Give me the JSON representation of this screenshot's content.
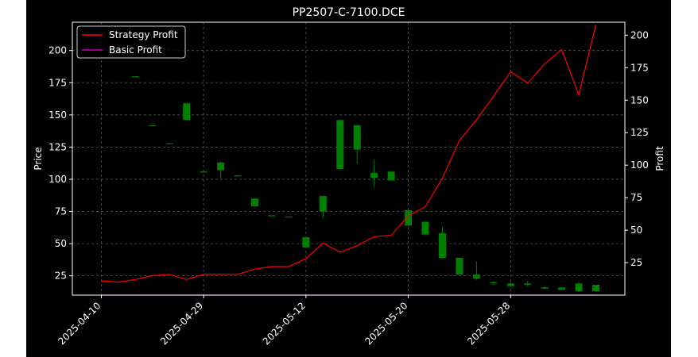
{
  "chart_data": {
    "type": "candlestick",
    "title": "PP2507-C-7100.DCE",
    "ylabel_left": "Price",
    "ylabel_right": "Profit",
    "ylim_left": [
      10,
      222
    ],
    "ylim_right": [
      0,
      210
    ],
    "yticks_left": [
      25,
      50,
      75,
      100,
      125,
      150,
      175,
      200
    ],
    "yticks_right": [
      25,
      50,
      75,
      100,
      125,
      150,
      175,
      200
    ],
    "x_tick_labels": [
      {
        "index": 0,
        "label": "2025-04-10"
      },
      {
        "index": 6,
        "label": "2025-04-29"
      },
      {
        "index": 12,
        "label": "2025-05-12"
      },
      {
        "index": 18,
        "label": "2025-05-20"
      },
      {
        "index": 24,
        "label": "2025-05-28"
      }
    ],
    "x_range": [
      -1.7,
      30.7
    ],
    "grid": true,
    "legend_position": "top-left",
    "colors": {
      "background": "#000000",
      "up": "#008000",
      "down": "#ff0000",
      "strategy": "#ff0000",
      "basic": "#bf00bf",
      "grid": "#555555",
      "text": "#ffffff"
    },
    "candles": [
      {
        "o": null,
        "h": null,
        "l": null,
        "c": null
      },
      {
        "o": null,
        "h": null,
        "l": null,
        "c": null
      },
      {
        "o": 180,
        "h": 180,
        "l": 180,
        "c": 180
      },
      {
        "o": 142,
        "h": 142,
        "l": 142,
        "c": 142
      },
      {
        "o": 128,
        "h": 128,
        "l": 128,
        "c": 128
      },
      {
        "o": 146,
        "h": 159,
        "l": 146,
        "c": 159
      },
      {
        "o": 106,
        "h": 106,
        "l": 106,
        "c": 106
      },
      {
        "o": 107,
        "h": 114,
        "l": 101,
        "c": 113
      },
      {
        "o": 103,
        "h": 103,
        "l": 103,
        "c": 103
      },
      {
        "o": 79,
        "h": 85,
        "l": 79,
        "c": 85
      },
      {
        "o": 72,
        "h": 72,
        "l": 72,
        "c": 72
      },
      {
        "o": 71,
        "h": 71,
        "l": 71,
        "c": 71
      },
      {
        "o": 47,
        "h": 55,
        "l": 47,
        "c": 55
      },
      {
        "o": 75,
        "h": 87,
        "l": 70,
        "c": 87
      },
      {
        "o": 108,
        "h": 146,
        "l": 108,
        "c": 146
      },
      {
        "o": 123,
        "h": 142,
        "l": 112,
        "c": 142
      },
      {
        "o": 101,
        "h": 115,
        "l": 94,
        "c": 105
      },
      {
        "o": 99,
        "h": 106,
        "l": 99,
        "c": 106
      },
      {
        "o": 64,
        "h": 76,
        "l": 64,
        "c": 76
      },
      {
        "o": 57,
        "h": 67,
        "l": 57,
        "c": 67
      },
      {
        "o": 39,
        "h": 63,
        "l": 38,
        "c": 58
      },
      {
        "o": 26,
        "h": 39,
        "l": 26,
        "c": 39
      },
      {
        "o": 23,
        "h": 36,
        "l": 22,
        "c": 26
      },
      {
        "o": 20,
        "h": 21,
        "l": 18,
        "c": 20
      },
      {
        "o": 17,
        "h": 20,
        "l": 17,
        "c": 19
      },
      {
        "o": 18,
        "h": 21,
        "l": 17,
        "c": 19
      },
      {
        "o": 15,
        "h": 17,
        "l": 15,
        "c": 16
      },
      {
        "o": 14,
        "h": 16,
        "l": 14,
        "c": 16
      },
      {
        "o": 13,
        "h": 20,
        "l": 13,
        "c": 19
      },
      {
        "o": 13,
        "h": 18,
        "l": 13,
        "c": 18
      }
    ],
    "series": [
      {
        "name": "Strategy Profit",
        "values": [
          11,
          10,
          12,
          15,
          16,
          12,
          16,
          16,
          16,
          20,
          22,
          22,
          28,
          40,
          33,
          38,
          45,
          46,
          61,
          68,
          90,
          119,
          135,
          153,
          172,
          163,
          178,
          189,
          154,
          208
        ]
      },
      {
        "name": "Basic Profit",
        "values": [
          0,
          0,
          0,
          0,
          0,
          0,
          0,
          0,
          0,
          0,
          0,
          0,
          0,
          0,
          0,
          0,
          0,
          0,
          0,
          0,
          0,
          0,
          0,
          0,
          0,
          0,
          0,
          0,
          0,
          0
        ]
      }
    ]
  }
}
